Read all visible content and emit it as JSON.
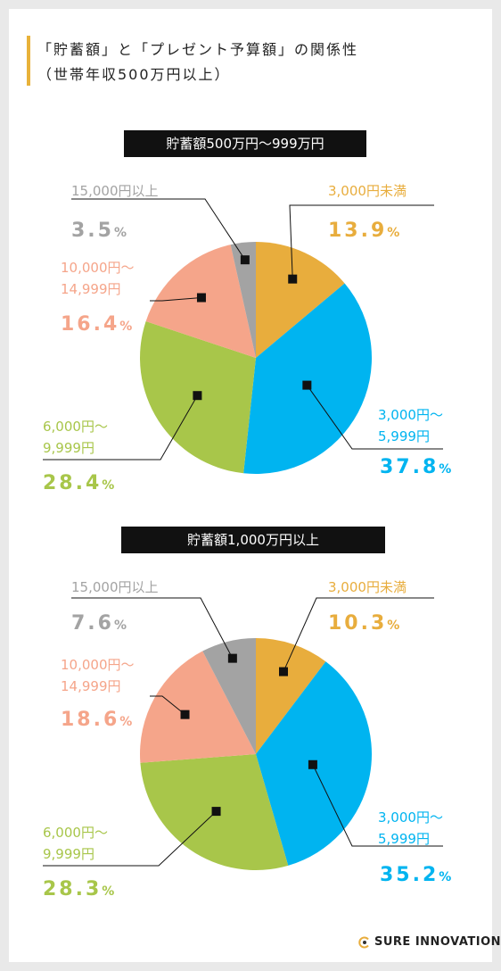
{
  "header": {
    "title_line1": "「貯蓄額」と「プレゼント予算額」の関係性",
    "title_line2": "（世帯年収500万円以上）"
  },
  "colors": {
    "under3000": "#e8ad3d",
    "3000to5999": "#00b4f0",
    "6000to9999": "#a8c64a",
    "10000to14999": "#f5a58a",
    "over15000": "#a3a3a3"
  },
  "chart_data": [
    {
      "type": "pie",
      "title": "貯蓄額500万円〜999万円",
      "slices": [
        {
          "label": "3,000円未満",
          "value": 13.9,
          "value_text": "13.9",
          "color_key": "under3000"
        },
        {
          "label": "3,000円〜\n5,999円",
          "value": 37.8,
          "value_text": "37.8",
          "color_key": "3000to5999"
        },
        {
          "label": "6,000円〜\n9,999円",
          "value": 28.4,
          "value_text": "28.4",
          "color_key": "6000to9999"
        },
        {
          "label": "10,000円〜\n14,999円",
          "value": 16.4,
          "value_text": "16.4",
          "color_key": "10000to14999"
        },
        {
          "label": "15,000円以上",
          "value": 3.5,
          "value_text": "3.5",
          "color_key": "over15000"
        }
      ],
      "unit": "%"
    },
    {
      "type": "pie",
      "title": "貯蓄額1,000万円以上",
      "slices": [
        {
          "label": "3,000円未満",
          "value": 10.3,
          "value_text": "10.3",
          "color_key": "under3000"
        },
        {
          "label": "3,000円〜\n5,999円",
          "value": 35.2,
          "value_text": "35.2",
          "color_key": "3000to5999"
        },
        {
          "label": "6,000円〜\n9,999円",
          "value": 28.3,
          "value_text": "28.3",
          "color_key": "6000to9999"
        },
        {
          "label": "10,000円〜\n14,999円",
          "value": 18.6,
          "value_text": "18.6",
          "color_key": "10000to14999"
        },
        {
          "label": "15,000円以上",
          "value": 7.6,
          "value_text": "7.6",
          "color_key": "over15000"
        }
      ],
      "unit": "%"
    }
  ],
  "footer": {
    "brand": "SURE INNOVATION"
  }
}
